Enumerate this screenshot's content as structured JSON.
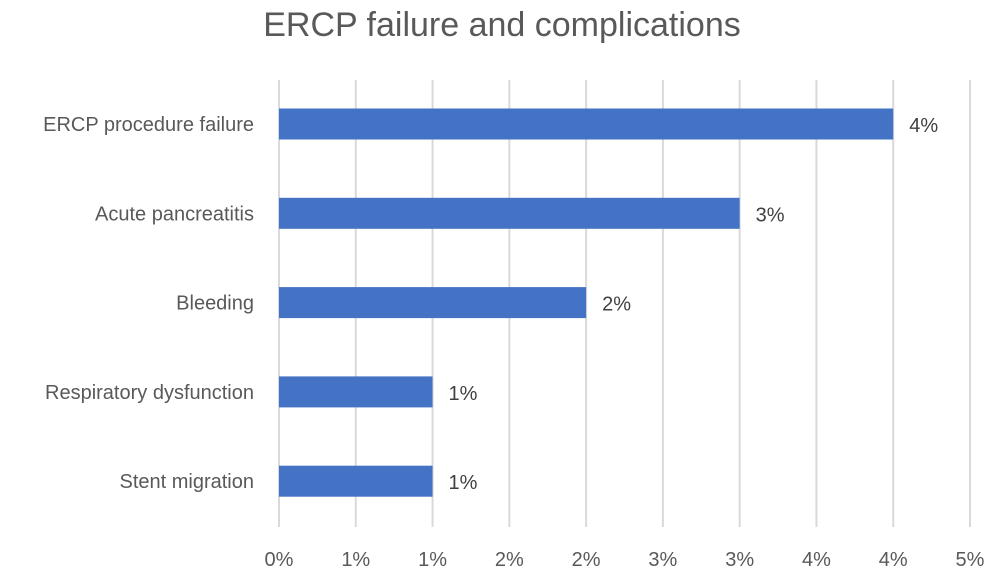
{
  "chart_data": {
    "type": "bar",
    "orientation": "horizontal",
    "title": "ERCP failure and complications",
    "xlabel": "",
    "ylabel": "",
    "categories": [
      "ERCP procedure failure",
      "Acute pancreatitis",
      "Bleeding",
      "Respiratory dysfunction",
      "Stent migration"
    ],
    "values": [
      4.0,
      3.0,
      2.0,
      1.0,
      1.0
    ],
    "data_labels": [
      "4%",
      "3%",
      "2%",
      "1%",
      "1%"
    ],
    "x_tick_labels": [
      "0%",
      "1%",
      "1%",
      "2%",
      "2%",
      "3%",
      "3%",
      "4%",
      "4%",
      "5%"
    ],
    "xlim": [
      0,
      4.5
    ],
    "grid": "vertical",
    "legend": "none",
    "colors": {
      "bar": "#4472c4"
    }
  }
}
